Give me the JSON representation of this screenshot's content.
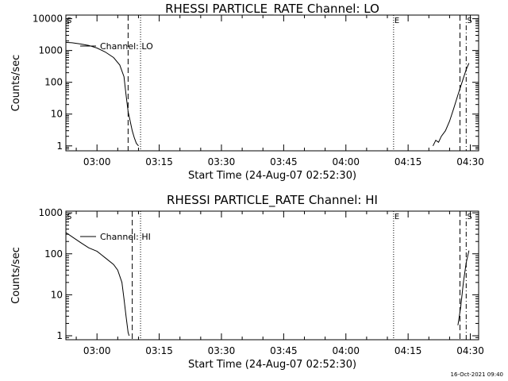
{
  "chart_data": [
    {
      "type": "line",
      "title": "RHESSI PARTICLE_RATE Channel: LO",
      "xlabel": "Start Time (24-Aug-07 02:52:30)",
      "ylabel": "Counts/sec",
      "y_scale": "log",
      "x_range": [
        "02:52:30",
        "04:32:00"
      ],
      "y_range": [
        0.7,
        13000
      ],
      "x_tick_labels": [
        "03:00",
        "03:15",
        "03:30",
        "03:45",
        "04:00",
        "04:15",
        "04:30"
      ],
      "y_ticks": [
        1,
        10,
        100,
        1000,
        10000
      ],
      "y_tick_labels": [
        "1",
        "10",
        "100",
        "1000",
        "10000"
      ],
      "markers": [
        {
          "label": "S",
          "time": "02:52:30",
          "style": "solid"
        },
        {
          "label": "",
          "time": "03:07:30",
          "style": "dashed"
        },
        {
          "label": "",
          "time": "03:10:30",
          "style": "dotted"
        },
        {
          "label": "E",
          "time": "04:11:30",
          "style": "dotted"
        },
        {
          "label": "",
          "time": "04:27:30",
          "style": "dashed"
        },
        {
          "label": "S",
          "time": "04:29:00",
          "style": "dash-dot"
        }
      ],
      "legend": {
        "label": "Channel: LO",
        "position": "top-left"
      },
      "series": [
        {
          "name": "Channel: LO",
          "segments": [
            [
              [
                "02:52:30",
                1800
              ],
              [
                "02:54:00",
                1750
              ],
              [
                "02:56:00",
                1600
              ],
              [
                "02:58:00",
                1450
              ],
              [
                "03:00:00",
                1200
              ],
              [
                "03:02:00",
                900
              ],
              [
                "03:04:00",
                600
              ],
              [
                "03:05:30",
                350
              ],
              [
                "03:06:30",
                150
              ],
              [
                "03:07:00",
                40
              ],
              [
                "03:07:30",
                12
              ],
              [
                "03:08:00",
                6
              ],
              [
                "03:08:30",
                3
              ],
              [
                "03:09:00",
                1.8
              ],
              [
                "03:09:30",
                1.2
              ],
              [
                "03:10:00",
                1
              ]
            ],
            [
              [
                "04:21:00",
                1
              ],
              [
                "04:21:40",
                1.5
              ],
              [
                "04:22:20",
                1.3
              ],
              [
                "04:23:00",
                2
              ],
              [
                "04:24:00",
                3
              ],
              [
                "04:25:00",
                6
              ],
              [
                "04:26:00",
                15
              ],
              [
                "04:27:00",
                40
              ],
              [
                "04:28:00",
                100
              ],
              [
                "04:29:00",
                250
              ],
              [
                "04:29:40",
                400
              ]
            ]
          ]
        }
      ]
    },
    {
      "type": "line",
      "title": "RHESSI PARTICLE_RATE Channel: HI",
      "xlabel": "Start Time (24-Aug-07 02:52:30)",
      "ylabel": "Counts/sec",
      "y_scale": "log",
      "x_range": [
        "02:52:30",
        "04:32:00"
      ],
      "y_range": [
        0.8,
        1100
      ],
      "x_tick_labels": [
        "03:00",
        "03:15",
        "03:30",
        "03:45",
        "04:00",
        "04:15",
        "04:30"
      ],
      "y_ticks": [
        1,
        10,
        100,
        1000
      ],
      "y_tick_labels": [
        "1",
        "10",
        "100",
        "1000"
      ],
      "markers": [
        {
          "label": "S",
          "time": "02:52:30",
          "style": "solid"
        },
        {
          "label": "",
          "time": "03:08:30",
          "style": "dashed"
        },
        {
          "label": "",
          "time": "03:10:30",
          "style": "dotted"
        },
        {
          "label": "E",
          "time": "04:11:30",
          "style": "dotted"
        },
        {
          "label": "",
          "time": "04:27:30",
          "style": "dashed"
        },
        {
          "label": "S",
          "time": "04:29:00",
          "style": "dash-dot"
        }
      ],
      "legend": {
        "label": "Channel: HI",
        "position": "top-left"
      },
      "series": [
        {
          "name": "Channel: HI",
          "segments": [
            [
              [
                "02:52:30",
                330
              ],
              [
                "02:54:00",
                260
              ],
              [
                "02:56:00",
                190
              ],
              [
                "02:58:00",
                140
              ],
              [
                "03:00:00",
                115
              ],
              [
                "03:02:00",
                80
              ],
              [
                "03:04:00",
                55
              ],
              [
                "03:05:00",
                40
              ],
              [
                "03:06:00",
                20
              ],
              [
                "03:06:30",
                8
              ],
              [
                "03:07:00",
                3
              ],
              [
                "03:07:30",
                1.2
              ],
              [
                "03:07:45",
                1
              ]
            ],
            [
              [
                "04:27:00",
                1.8
              ],
              [
                "04:27:40",
                5
              ],
              [
                "04:28:20",
                20
              ],
              [
                "04:29:00",
                60
              ],
              [
                "04:29:40",
                120
              ]
            ]
          ]
        }
      ]
    }
  ],
  "footer": {
    "date_stamp": "16-Oct-2021 09:40"
  }
}
